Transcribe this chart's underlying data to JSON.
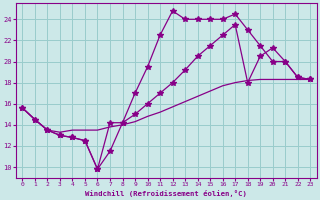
{
  "xlabel": "Windchill (Refroidissement éolien,°C)",
  "bg_color": "#cce8e8",
  "grid_color": "#99cccc",
  "line_color": "#880088",
  "xlim": [
    -0.5,
    23.5
  ],
  "ylim": [
    9.0,
    25.5
  ],
  "xticks": [
    0,
    1,
    2,
    3,
    4,
    5,
    6,
    7,
    8,
    9,
    10,
    11,
    12,
    13,
    14,
    15,
    16,
    17,
    18,
    19,
    20,
    21,
    22,
    23
  ],
  "yticks": [
    10,
    12,
    14,
    16,
    18,
    20,
    22,
    24
  ],
  "line1_x": [
    0,
    1,
    2,
    3,
    4,
    5,
    6,
    7,
    8,
    9,
    10,
    11,
    12,
    13,
    14,
    15,
    16,
    17,
    18,
    19,
    20,
    21,
    22,
    23
  ],
  "line1_y": [
    15.6,
    14.5,
    13.5,
    13.0,
    12.8,
    12.5,
    9.8,
    11.5,
    14.2,
    17.0,
    19.5,
    22.5,
    24.8,
    24.0,
    24.0,
    24.0,
    24.0,
    24.5,
    23.0,
    21.5,
    20.0,
    20.0,
    18.5,
    18.3
  ],
  "line2_x": [
    0,
    1,
    2,
    3,
    4,
    5,
    6,
    7,
    8,
    9,
    10,
    11,
    12,
    13,
    14,
    15,
    16,
    17,
    18,
    19,
    20,
    21,
    22,
    23
  ],
  "line2_y": [
    15.6,
    14.5,
    13.5,
    13.0,
    12.8,
    12.5,
    9.8,
    14.2,
    14.2,
    15.0,
    16.0,
    17.0,
    18.0,
    19.2,
    20.5,
    21.5,
    22.5,
    23.5,
    18.0,
    20.5,
    21.3,
    20.0,
    18.5,
    18.3
  ],
  "line3_x": [
    0,
    1,
    2,
    3,
    4,
    5,
    6,
    7,
    8,
    9,
    10,
    11,
    12,
    13,
    14,
    15,
    16,
    17,
    18,
    19,
    20,
    21,
    22,
    23
  ],
  "line3_y": [
    15.6,
    14.5,
    13.5,
    13.3,
    13.5,
    13.5,
    13.5,
    13.8,
    14.0,
    14.3,
    14.8,
    15.2,
    15.7,
    16.2,
    16.7,
    17.2,
    17.7,
    18.0,
    18.2,
    18.3,
    18.3,
    18.3,
    18.3,
    18.3
  ]
}
